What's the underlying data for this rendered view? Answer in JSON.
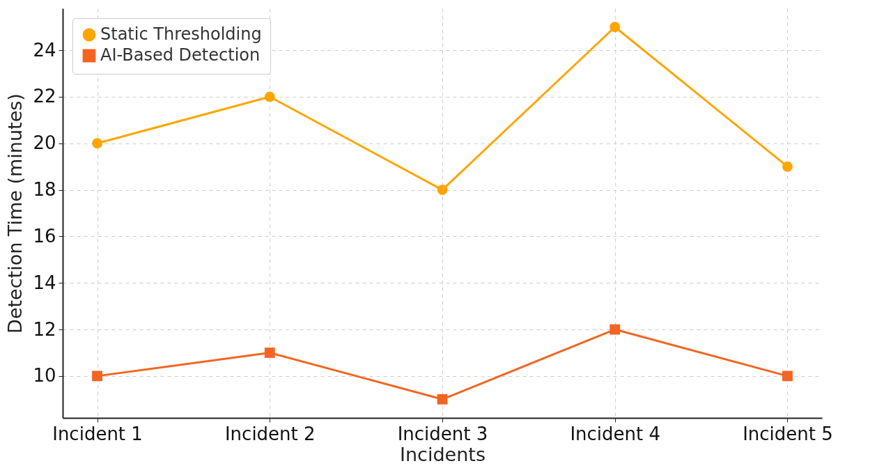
{
  "chart_data": {
    "type": "line",
    "xlabel": "Incidents",
    "ylabel": "Detection Time (minutes)",
    "categories": [
      "Incident 1",
      "Incident 2",
      "Incident 3",
      "Incident 4",
      "Incident 5"
    ],
    "series": [
      {
        "name": "Static Thresholding",
        "color": "#ffa500",
        "marker": "circle",
        "values": [
          20,
          22,
          18,
          25,
          19
        ]
      },
      {
        "name": "AI-Based Detection",
        "color": "#f26522",
        "marker": "square",
        "values": [
          10,
          11,
          9,
          12,
          10
        ]
      }
    ],
    "ylim": [
      8.2,
      25.8
    ],
    "yticks": [
      10,
      12,
      14,
      16,
      18,
      20,
      22,
      24
    ],
    "grid": true,
    "legend": "top left"
  }
}
